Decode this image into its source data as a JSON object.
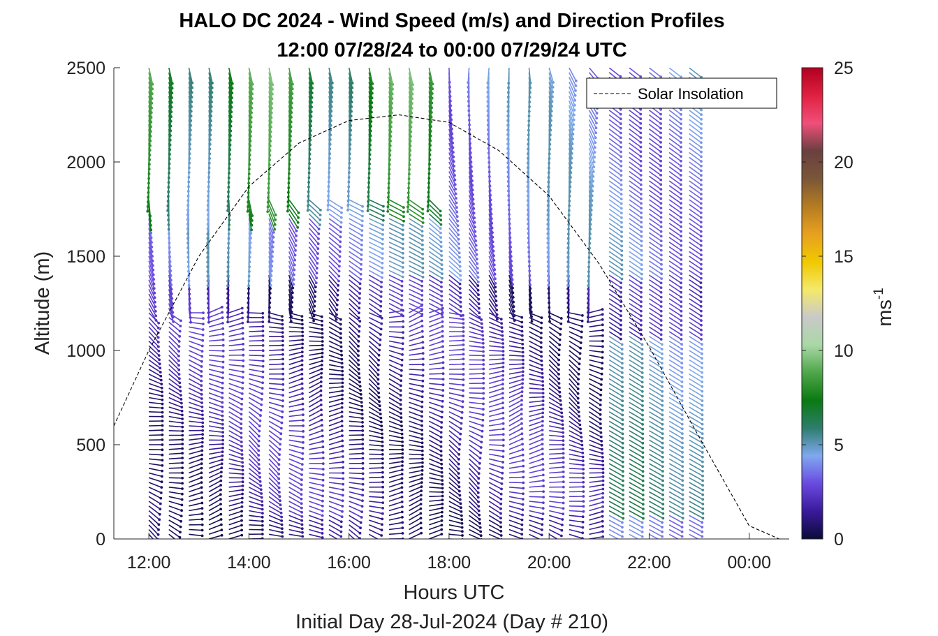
{
  "chart_data": {
    "type": "wind-barb-profile",
    "title_line1": "HALO DC 2024 - Wind Speed (m/s) and Direction Profiles",
    "title_line2": "12:00 07/28/24 to 00:00 07/29/24  UTC",
    "xlabel": "Hours UTC",
    "subxlabel": "Initial Day 28-Jul-2024 (Day # 210)",
    "ylabel": "Altitude (m)",
    "xlim": [
      11.3,
      24.8
    ],
    "ylim": [
      0,
      2500
    ],
    "xticks": [
      12,
      14,
      16,
      18,
      20,
      22,
      24
    ],
    "xtick_labels": [
      "12:00",
      "14:00",
      "16:00",
      "18:00",
      "20:00",
      "22:00",
      "00:00"
    ],
    "yticks": [
      0,
      500,
      1000,
      1500,
      2000,
      2500
    ],
    "ytick_labels": [
      "0",
      "500",
      "1000",
      "1500",
      "2000",
      "2500"
    ],
    "colorbar": {
      "label_base": "ms",
      "label_exp": "-1",
      "range": [
        0,
        25
      ],
      "ticks": [
        0,
        5,
        10,
        15,
        20,
        25
      ],
      "tick_labels": [
        "0",
        "5",
        "10",
        "15",
        "20",
        "25"
      ],
      "colors": [
        "#0b0b3a",
        "#3a1a9a",
        "#6a4ae0",
        "#7fa8f0",
        "#2e7d6d",
        "#0a7a12",
        "#4fa64a",
        "#a9d8a6",
        "#c9c9c9",
        "#f5e96a",
        "#f0c800",
        "#e8a020",
        "#b47c22",
        "#7a5638",
        "#6a4040",
        "#f04f7a",
        "#e02040",
        "#b00020"
      ]
    },
    "legend": {
      "label": "Solar Insolation",
      "position": "top-right"
    },
    "solar_insolation": {
      "x": [
        11.3,
        12,
        13,
        14,
        15,
        16,
        17,
        18,
        19,
        20,
        21,
        22,
        23,
        24,
        24.6,
        24.8
      ],
      "y": [
        600,
        1000,
        1500,
        1870,
        2100,
        2220,
        2250,
        2210,
        2060,
        1820,
        1460,
        1020,
        540,
        70,
        0,
        0
      ]
    },
    "wind_barbs": {
      "x_start": 12.0,
      "x_end": 22.9,
      "x_step": 0.4,
      "y_start": 0,
      "y_end": 2500,
      "y_step": 25
    }
  }
}
